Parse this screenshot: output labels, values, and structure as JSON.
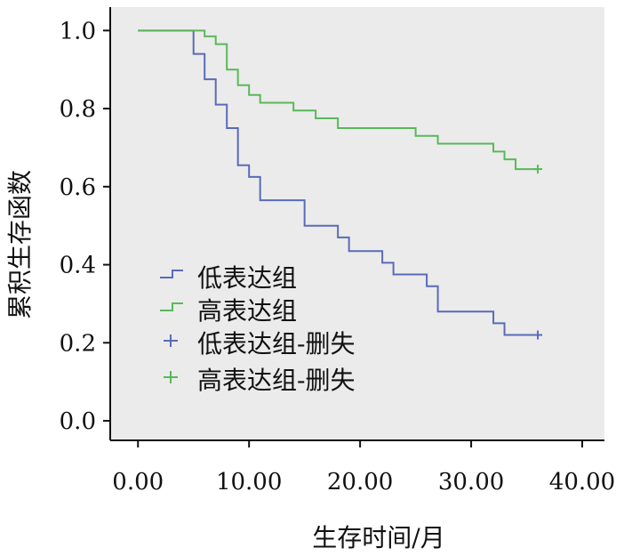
{
  "chart_data": {
    "type": "line",
    "subtype": "kaplan-meier step",
    "xlabel": "生存时间/月",
    "ylabel": "累积生存函数",
    "xlim": [
      -2.5,
      42
    ],
    "ylim": [
      -0.05,
      1.06
    ],
    "x_ticks": [
      "0.00",
      "10.00",
      "20.00",
      "30.00",
      "40.00"
    ],
    "x_tick_values": [
      0,
      10,
      20,
      30,
      40
    ],
    "y_ticks": [
      "0.0",
      "0.2",
      "0.4",
      "0.6",
      "0.8",
      "1.0"
    ],
    "y_tick_values": [
      0.0,
      0.2,
      0.4,
      0.6,
      0.8,
      1.0
    ],
    "grid": false,
    "background": "#ebebeb",
    "legend_position": "lower-left inside plot",
    "legend": [
      "低表达组",
      "高表达组",
      "低表达组-删失",
      "高表达组-删失"
    ],
    "series": [
      {
        "name": "低表达组",
        "color": "#5a6bb8",
        "x": [
          0,
          5,
          6,
          7,
          8,
          9,
          10,
          11,
          15,
          18,
          19,
          22,
          23,
          26,
          27,
          32,
          33,
          36
        ],
        "y": [
          1.0,
          0.94,
          0.875,
          0.81,
          0.75,
          0.655,
          0.625,
          0.565,
          0.5,
          0.47,
          0.435,
          0.405,
          0.375,
          0.345,
          0.28,
          0.25,
          0.22,
          0.22
        ]
      },
      {
        "name": "高表达组",
        "color": "#5ab85a",
        "x": [
          0,
          6,
          7,
          8,
          9,
          10,
          11,
          14,
          16,
          18,
          25,
          27,
          32,
          33,
          34,
          36
        ],
        "y": [
          1.0,
          0.985,
          0.965,
          0.9,
          0.86,
          0.835,
          0.815,
          0.795,
          0.775,
          0.75,
          0.73,
          0.71,
          0.69,
          0.67,
          0.645,
          0.645
        ]
      }
    ],
    "censored": [
      {
        "name": "低表达组-删失",
        "color": "#5a6bb8",
        "x": [
          36
        ],
        "y": [
          0.22
        ]
      },
      {
        "name": "高表达组-删失",
        "color": "#5ab85a",
        "x": [
          36
        ],
        "y": [
          0.645
        ]
      }
    ]
  }
}
